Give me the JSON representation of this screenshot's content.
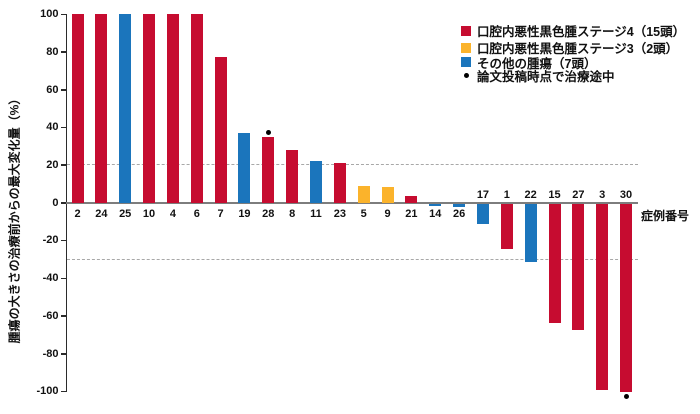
{
  "chart_data": {
    "type": "bar",
    "subtype": "waterfall",
    "title": "",
    "ylabel": "腫瘍の大きさの治療前からの最大変化量（%）",
    "xlabel": "症例番号",
    "ylim": [
      -100,
      100
    ],
    "yticks": [
      100,
      80,
      60,
      40,
      20,
      0,
      -20,
      -40,
      -60,
      -80,
      -100
    ],
    "reference_lines": [
      20,
      -30
    ],
    "grid": false,
    "legend_position": "top-right",
    "colors": {
      "stage4": "#C60C30",
      "stage3": "#FBB32B",
      "other": "#1B75BC",
      "marker": "#000000"
    },
    "bars": [
      {
        "label": "2",
        "value": 100,
        "group": "stage4"
      },
      {
        "label": "24",
        "value": 100,
        "group": "stage4"
      },
      {
        "label": "25",
        "value": 100,
        "group": "other"
      },
      {
        "label": "10",
        "value": 100,
        "group": "stage4"
      },
      {
        "label": "4",
        "value": 100,
        "group": "stage4"
      },
      {
        "label": "6",
        "value": 100,
        "group": "stage4"
      },
      {
        "label": "7",
        "value": 77,
        "group": "stage4"
      },
      {
        "label": "19",
        "value": 37,
        "group": "other"
      },
      {
        "label": "28",
        "value": 35,
        "group": "stage4"
      },
      {
        "label": "8",
        "value": 28,
        "group": "stage4"
      },
      {
        "label": "11",
        "value": 22,
        "group": "other"
      },
      {
        "label": "23",
        "value": 21,
        "group": "stage4"
      },
      {
        "label": "5",
        "value": 9,
        "group": "stage3"
      },
      {
        "label": "9",
        "value": 8.5,
        "group": "stage3"
      },
      {
        "label": "21",
        "value": 3.5,
        "group": "stage4"
      },
      {
        "label": "14",
        "value": -1,
        "group": "other"
      },
      {
        "label": "26",
        "value": -2,
        "group": "other"
      },
      {
        "label": "17",
        "value": -11,
        "group": "other"
      },
      {
        "label": "1",
        "value": -24,
        "group": "stage4"
      },
      {
        "label": "22",
        "value": -31,
        "group": "other"
      },
      {
        "label": "15",
        "value": -63,
        "group": "stage4"
      },
      {
        "label": "27",
        "value": -67,
        "group": "stage4"
      },
      {
        "label": "3",
        "value": -99,
        "group": "stage4"
      },
      {
        "label": "30",
        "value": -100,
        "group": "stage4"
      }
    ],
    "markers": [
      {
        "category": "28",
        "value": 37
      },
      {
        "category": "30",
        "value": -103
      }
    ],
    "legend": [
      {
        "label": "口腔内悪性黒色腫ステージ4（15頭）",
        "group": "stage4",
        "swatch": "square"
      },
      {
        "label": "口腔内悪性黒色腫ステージ3（2頭）",
        "group": "stage3",
        "swatch": "square"
      },
      {
        "label": "その他の腫瘍（7頭）",
        "group": "other",
        "swatch": "square"
      },
      {
        "label": "論文投稿時点で治療途中",
        "group": "marker",
        "swatch": "dot"
      }
    ]
  }
}
